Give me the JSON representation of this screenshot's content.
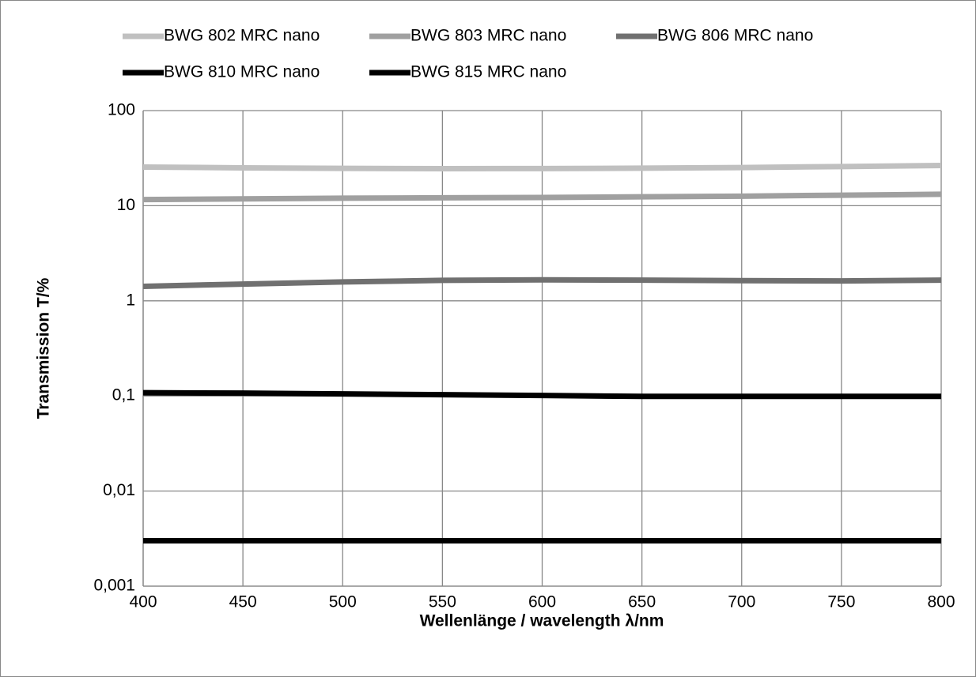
{
  "chart_data": {
    "type": "line",
    "x_label": "Wellenlänge / wavelength λ/nm",
    "y_label": "Transmission T/%",
    "x": [
      400,
      450,
      500,
      550,
      600,
      650,
      700,
      750,
      800
    ],
    "series": [
      {
        "name": "BWG 802 MRC nano",
        "color": "#c0c0c0",
        "values": [
          25.5,
          25,
          24.7,
          24.5,
          24.6,
          24.8,
          25.2,
          25.8,
          26.5
        ]
      },
      {
        "name": "BWG 803 MRC nano",
        "color": "#a0a0a0",
        "values": [
          11.6,
          11.8,
          12,
          12.1,
          12.2,
          12.4,
          12.6,
          12.9,
          13.2
        ]
      },
      {
        "name": "BWG 806 MRC nano",
        "color": "#707070",
        "values": [
          1.42,
          1.5,
          1.58,
          1.64,
          1.66,
          1.65,
          1.63,
          1.62,
          1.65
        ]
      },
      {
        "name": "BWG 810 MRC nano",
        "color": "#000000",
        "values": [
          0.108,
          0.107,
          0.105,
          0.103,
          0.101,
          0.099,
          0.099,
          0.099,
          0.099
        ]
      },
      {
        "name": "BWG 815 MRC nano",
        "color": "#000000",
        "values": [
          0.003,
          0.003,
          0.003,
          0.003,
          0.003,
          0.003,
          0.003,
          0.003,
          0.003
        ]
      }
    ],
    "xlim": [
      400,
      800
    ],
    "xticks": [
      400,
      450,
      500,
      550,
      600,
      650,
      700,
      750,
      800
    ],
    "ylim": [
      0.001,
      100
    ],
    "yticks": [
      {
        "value": 0.001,
        "label": "0,001"
      },
      {
        "value": 0.01,
        "label": "0,01"
      },
      {
        "value": 0.1,
        "label": "0,1"
      },
      1,
      10,
      100
    ],
    "log_y": true,
    "grid": true,
    "legend": "top"
  }
}
